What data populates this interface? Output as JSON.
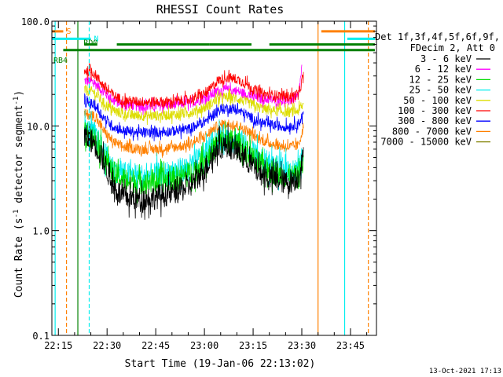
{
  "chart_data": {
    "type": "line",
    "title": "RHESSI Count Rates",
    "xlabel": "Start Time (19-Jan-06 22:13:02)",
    "ylabel": "Count Rate (s",
    "ylabel_sup1": "-1",
    "ylabel_mid": " detector segment",
    "ylabel_sup2": "-1",
    "ylabel_end": ")",
    "y_scale": "log",
    "ylim": [
      0.1,
      100.0
    ],
    "xlim_min": [
      13.0,
      113.0
    ],
    "x_ticks": [
      {
        "t": 15,
        "label": "22:15"
      },
      {
        "t": 30,
        "label": "22:30"
      },
      {
        "t": 45,
        "label": "22:45"
      },
      {
        "t": 60,
        "label": "23:00"
      },
      {
        "t": 75,
        "label": "23:15"
      },
      {
        "t": 90,
        "label": "23:30"
      },
      {
        "t": 105,
        "label": "23:45"
      }
    ],
    "y_ticks": [
      {
        "v": 100,
        "label": "100.0"
      },
      {
        "v": 10,
        "label": "10.0"
      },
      {
        "v": 1,
        "label": "1.0"
      },
      {
        "v": 0.1,
        "label": "0.1"
      }
    ],
    "legend_header": [
      "Det 1f,3f,4f,5f,6f,9f,",
      "FDecim 2, Att 0"
    ],
    "legend_position": "right",
    "data_range_min": [
      23.0,
      90.5
    ],
    "series": [
      {
        "name": "3 - 6 keV",
        "color": "#000000",
        "points": [
          [
            23,
            8.0
          ],
          [
            26,
            7.0
          ],
          [
            29,
            4.6
          ],
          [
            32,
            2.6
          ],
          [
            35,
            2.1
          ],
          [
            40,
            2.0
          ],
          [
            45,
            2.1
          ],
          [
            50,
            2.3
          ],
          [
            55,
            2.6
          ],
          [
            58,
            3.2
          ],
          [
            61,
            4.3
          ],
          [
            64,
            6.2
          ],
          [
            67,
            6.6
          ],
          [
            70,
            5.8
          ],
          [
            73,
            4.8
          ],
          [
            76,
            3.8
          ],
          [
            79,
            3.3
          ],
          [
            83,
            3.0
          ],
          [
            86,
            2.9
          ],
          [
            89,
            3.3
          ],
          [
            90.5,
            5.0
          ]
        ]
      },
      {
        "name": "6 - 12 keV",
        "color": "#ff00ff",
        "points": [
          [
            23,
            27
          ],
          [
            26,
            26
          ],
          [
            29,
            21
          ],
          [
            32,
            17.5
          ],
          [
            35,
            16
          ],
          [
            40,
            15.5
          ],
          [
            45,
            15.5
          ],
          [
            50,
            16
          ],
          [
            55,
            16.5
          ],
          [
            58,
            17.5
          ],
          [
            61,
            19
          ],
          [
            64,
            21.5
          ],
          [
            67,
            22
          ],
          [
            70,
            21.5
          ],
          [
            73,
            20
          ],
          [
            76,
            18.5
          ],
          [
            79,
            18
          ],
          [
            83,
            17.5
          ],
          [
            86,
            17.5
          ],
          [
            89,
            19
          ],
          [
            90,
            36
          ]
        ]
      },
      {
        "name": "12 - 25 keV",
        "color": "#00dd00",
        "points": [
          [
            23,
            8.5
          ],
          [
            26,
            7.8
          ],
          [
            29,
            5.0
          ],
          [
            32,
            3.5
          ],
          [
            35,
            3.1
          ],
          [
            40,
            2.9
          ],
          [
            45,
            3.0
          ],
          [
            50,
            3.1
          ],
          [
            55,
            3.4
          ],
          [
            58,
            4.0
          ],
          [
            61,
            5.0
          ],
          [
            64,
            6.8
          ],
          [
            67,
            7.3
          ],
          [
            70,
            6.8
          ],
          [
            73,
            5.6
          ],
          [
            76,
            4.6
          ],
          [
            79,
            3.9
          ],
          [
            83,
            3.4
          ],
          [
            86,
            3.3
          ],
          [
            89,
            3.2
          ],
          [
            90.5,
            4.6
          ]
        ]
      },
      {
        "name": "25 - 50 keV",
        "color": "#00eeee",
        "points": [
          [
            23,
            9.2
          ],
          [
            26,
            8.6
          ],
          [
            29,
            5.6
          ],
          [
            32,
            3.9
          ],
          [
            35,
            3.5
          ],
          [
            40,
            3.3
          ],
          [
            45,
            3.4
          ],
          [
            50,
            3.6
          ],
          [
            55,
            4.0
          ],
          [
            58,
            4.7
          ],
          [
            61,
            5.9
          ],
          [
            64,
            7.6
          ],
          [
            67,
            8.0
          ],
          [
            70,
            7.6
          ],
          [
            73,
            6.4
          ],
          [
            76,
            5.3
          ],
          [
            79,
            4.5
          ],
          [
            83,
            3.9
          ],
          [
            86,
            3.8
          ],
          [
            89,
            3.7
          ],
          [
            90.5,
            5.5
          ]
        ]
      },
      {
        "name": "50 - 100 keV",
        "color": "#dddd00",
        "points": [
          [
            23,
            22
          ],
          [
            26,
            21
          ],
          [
            29,
            16.5
          ],
          [
            32,
            14
          ],
          [
            35,
            13
          ],
          [
            40,
            12.5
          ],
          [
            45,
            12.5
          ],
          [
            50,
            12.8
          ],
          [
            55,
            13.3
          ],
          [
            58,
            14.2
          ],
          [
            61,
            15.5
          ],
          [
            64,
            18
          ],
          [
            67,
            18.8
          ],
          [
            70,
            18.3
          ],
          [
            73,
            16.8
          ],
          [
            76,
            15.3
          ],
          [
            79,
            14.3
          ],
          [
            83,
            13.8
          ],
          [
            86,
            13.5
          ],
          [
            89,
            14
          ],
          [
            90.5,
            16
          ]
        ]
      },
      {
        "name": "100 - 300 keV",
        "color": "#ff0000",
        "points": [
          [
            23,
            34
          ],
          [
            26,
            32
          ],
          [
            29,
            24
          ],
          [
            32,
            19.5
          ],
          [
            35,
            17.5
          ],
          [
            40,
            17
          ],
          [
            45,
            17
          ],
          [
            50,
            17
          ],
          [
            55,
            17.8
          ],
          [
            58,
            19
          ],
          [
            61,
            21
          ],
          [
            64,
            27
          ],
          [
            67,
            29
          ],
          [
            70,
            28
          ],
          [
            73,
            25
          ],
          [
            76,
            21.5
          ],
          [
            79,
            20
          ],
          [
            83,
            19.5
          ],
          [
            86,
            19
          ],
          [
            89,
            20
          ],
          [
            90.5,
            30
          ]
        ]
      },
      {
        "name": "300 - 800 keV",
        "color": "#0000ff",
        "points": [
          [
            23,
            17
          ],
          [
            26,
            16
          ],
          [
            29,
            12
          ],
          [
            32,
            9.8
          ],
          [
            35,
            9.0
          ],
          [
            40,
            8.6
          ],
          [
            45,
            8.7
          ],
          [
            50,
            8.9
          ],
          [
            55,
            9.3
          ],
          [
            58,
            10.2
          ],
          [
            61,
            11.5
          ],
          [
            64,
            14
          ],
          [
            67,
            14.8
          ],
          [
            70,
            14.2
          ],
          [
            73,
            12.8
          ],
          [
            76,
            11.2
          ],
          [
            79,
            10.4
          ],
          [
            83,
            10
          ],
          [
            86,
            9.8
          ],
          [
            89,
            10.5
          ],
          [
            90.5,
            13
          ]
        ]
      },
      {
        "name": "800 - 7000 keV",
        "color": "#ff8000",
        "points": [
          [
            23,
            13
          ],
          [
            26,
            12.5
          ],
          [
            29,
            9.0
          ],
          [
            32,
            7.0
          ],
          [
            35,
            6.3
          ],
          [
            40,
            6.0
          ],
          [
            45,
            6.0
          ],
          [
            50,
            6.2
          ],
          [
            55,
            6.6
          ],
          [
            58,
            7.3
          ],
          [
            61,
            8.3
          ],
          [
            64,
            10
          ],
          [
            67,
            10.5
          ],
          [
            70,
            10.2
          ],
          [
            73,
            9.0
          ],
          [
            76,
            7.8
          ],
          [
            79,
            7.0
          ],
          [
            83,
            6.5
          ],
          [
            86,
            6.3
          ],
          [
            89,
            6.5
          ],
          [
            90.5,
            10
          ]
        ]
      },
      {
        "name": "7000 - 15000 keV",
        "color": "#808000",
        "points": []
      }
    ],
    "annotations": {
      "rows": [
        {
          "label": "S",
          "color": "#ff8000",
          "value": 80,
          "segments": [
            [
              13,
              16.5
            ],
            [
              96,
              112.5
            ]
          ]
        },
        {
          "label": "N",
          "color": "#00eeee",
          "value": 68,
          "segments": [
            [
              13,
              25
            ],
            [
              104,
              112.5
            ]
          ]
        },
        {
          "label": "RD0",
          "color": "#008000",
          "value": 60,
          "segments": [
            [
              23,
              27
            ],
            [
              33,
              61.5
            ],
            [
              61.5,
              74.5
            ],
            [
              80,
              112.5
            ]
          ]
        },
        {
          "label": "RB4",
          "color": "#008000",
          "value": 53,
          "segments": [
            [
              16.5,
              112.5
            ]
          ]
        }
      ],
      "vlines": [
        {
          "t": 14.0,
          "color": "#00eeee",
          "dashed": false
        },
        {
          "t": 17.5,
          "color": "#ff8000",
          "dashed": true
        },
        {
          "t": 21.0,
          "color": "#008000",
          "dashed": false
        },
        {
          "t": 24.5,
          "color": "#00eeee",
          "dashed": true
        },
        {
          "t": 95.0,
          "color": "#ff8000",
          "dashed": false
        },
        {
          "t": 103.2,
          "color": "#00eeee",
          "dashed": false
        },
        {
          "t": 110.5,
          "color": "#ff8000",
          "dashed": true
        }
      ]
    }
  },
  "footer": {
    "timestamp": "13-Oct-2021 17:13"
  }
}
